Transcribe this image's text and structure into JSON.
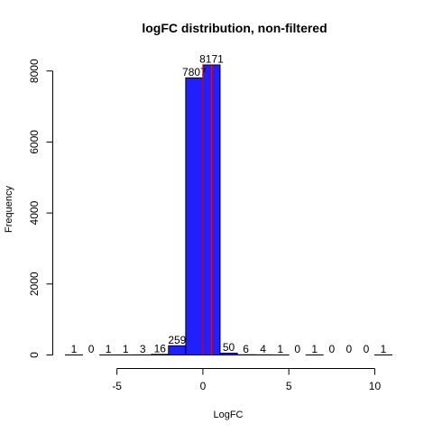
{
  "chart_data": {
    "type": "bar",
    "title": "logFC distribution, non-filtered",
    "xlabel": "LogFC",
    "ylabel": "Frequency",
    "bin_width": 1,
    "bins": [
      {
        "start": -8,
        "end": -7,
        "count": 1
      },
      {
        "start": -7,
        "end": -6,
        "count": 0
      },
      {
        "start": -6,
        "end": -5,
        "count": 1
      },
      {
        "start": -5,
        "end": -4,
        "count": 1
      },
      {
        "start": -4,
        "end": -3,
        "count": 3
      },
      {
        "start": -3,
        "end": -2,
        "count": 16
      },
      {
        "start": -2,
        "end": -1,
        "count": 259
      },
      {
        "start": -1,
        "end": 0,
        "count": 7807
      },
      {
        "start": 0,
        "end": 1,
        "count": 8171
      },
      {
        "start": 1,
        "end": 2,
        "count": 50
      },
      {
        "start": 2,
        "end": 3,
        "count": 6
      },
      {
        "start": 3,
        "end": 4,
        "count": 4
      },
      {
        "start": 4,
        "end": 5,
        "count": 1
      },
      {
        "start": 5,
        "end": 6,
        "count": 0
      },
      {
        "start": 6,
        "end": 7,
        "count": 1
      },
      {
        "start": 7,
        "end": 8,
        "count": 0
      },
      {
        "start": 8,
        "end": 9,
        "count": 0
      },
      {
        "start": 9,
        "end": 10,
        "count": 0
      },
      {
        "start": 10,
        "end": 11,
        "count": 1
      }
    ],
    "x_ticks": [
      -5,
      0,
      5,
      10
    ],
    "y_ticks": [
      0,
      2000,
      4000,
      6000,
      8000
    ],
    "xlim": [
      -8,
      11
    ],
    "ylim": [
      0,
      8171
    ],
    "reference_lines": [
      {
        "x": 0,
        "color": "#ff0000"
      },
      {
        "x": 0.5,
        "color": "#ff0000"
      }
    ],
    "bar_color": "#2020ff",
    "grid": false,
    "legend": "none"
  }
}
